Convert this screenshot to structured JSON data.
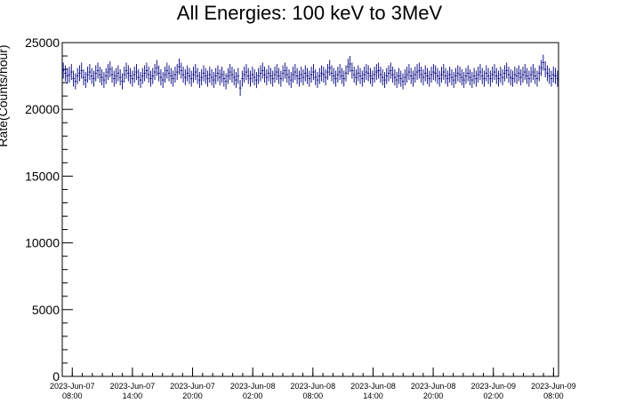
{
  "chart_data": {
    "type": "scatter",
    "title": "All Energies:  100 keV to 3MeV",
    "xlabel": "",
    "ylabel": "Rate(Counts/hour)",
    "ylim": [
      0,
      25000
    ],
    "y_ticks": [
      0,
      5000,
      10000,
      15000,
      20000,
      25000
    ],
    "x_start": "2023-Jun-07 07:00",
    "x_end": "2023-Jun-09 08:30",
    "x_tick_labels": [
      {
        "date": "2023-Jun-07",
        "time": "08:00"
      },
      {
        "date": "2023-Jun-07",
        "time": "14:00"
      },
      {
        "date": "2023-Jun-07",
        "time": "20:00"
      },
      {
        "date": "2023-Jun-08",
        "time": "02:00"
      },
      {
        "date": "2023-Jun-08",
        "time": "08:00"
      },
      {
        "date": "2023-Jun-08",
        "time": "14:00"
      },
      {
        "date": "2023-Jun-08",
        "time": "20:00"
      },
      {
        "date": "2023-Jun-09",
        "time": "02:00"
      },
      {
        "date": "2023-Jun-09",
        "time": "08:00"
      }
    ],
    "grid": false,
    "legend": "none",
    "marker_color": "#000080",
    "series": [
      {
        "values": [
          22900,
          22700,
          22500,
          22600,
          22800,
          22300,
          22100,
          22500,
          22700,
          22900,
          22400,
          22200,
          22600,
          22800,
          22500,
          22300,
          22700,
          22900,
          22600,
          22400,
          22200,
          22500,
          22800,
          23000,
          22600,
          22300,
          22500,
          22700,
          22400,
          22100,
          22600,
          22900,
          22700,
          22500,
          22300,
          22600,
          22800,
          22400,
          22200,
          22500,
          22700,
          22900,
          22600,
          22300,
          22500,
          22800,
          23100,
          22700,
          22400,
          22200,
          22600,
          22900,
          22700,
          22500,
          22300,
          22600,
          22800,
          23200,
          22900,
          22600,
          22400,
          22700,
          22500,
          22300,
          22600,
          22800,
          22500,
          22200,
          22400,
          22700,
          22500,
          22300,
          22600,
          22400,
          22200,
          22500,
          22700,
          22400,
          22600,
          22300,
          22100,
          22500,
          22800,
          22600,
          22400,
          22200,
          22500,
          21600,
          22300,
          22600,
          22800,
          22500,
          22300,
          22600,
          22400,
          22200,
          22500,
          22700,
          22900,
          22600,
          22400,
          22700,
          22500,
          22300,
          22600,
          22800,
          22500,
          22300,
          22700,
          22900,
          22600,
          22400,
          22200,
          22600,
          22800,
          22500,
          22300,
          22600,
          22400,
          22700,
          22500,
          22300,
          22600,
          22800,
          22400,
          22200,
          22500,
          22700,
          22600,
          22400,
          22800,
          23100,
          22700,
          22500,
          22300,
          22600,
          22800,
          22500,
          22300,
          22700,
          23200,
          23400,
          22900,
          22600,
          22400,
          22700,
          22500,
          22300,
          22600,
          22800,
          22700,
          22500,
          22300,
          22600,
          22800,
          22900,
          22600,
          22400,
          22200,
          22500,
          22700,
          22900,
          22600,
          22400,
          22200,
          22500,
          22300,
          22100,
          22400,
          22600,
          22800,
          22500,
          22300,
          22600,
          22800,
          22900,
          22600,
          22400,
          22700,
          22500,
          22300,
          22600,
          22800,
          22700,
          22500,
          22300,
          22600,
          22800,
          22500,
          22300,
          22600,
          22400,
          22200,
          22500,
          22700,
          22600,
          22400,
          22200,
          22500,
          22700,
          22400,
          22200,
          22500,
          22300,
          22600,
          22800,
          22500,
          22300,
          22700,
          22500,
          22300,
          22600,
          22800,
          22500,
          22300,
          22600,
          22400,
          22700,
          22900,
          22600,
          22400,
          22300,
          22600,
          22500,
          22700,
          22400,
          22600,
          22800,
          22500,
          22300,
          22600,
          22800,
          22500,
          22300,
          22700,
          23100,
          23500,
          23000,
          22700,
          22500,
          22300,
          22600,
          22500,
          22300
        ]
      }
    ],
    "error_bar": 600
  }
}
